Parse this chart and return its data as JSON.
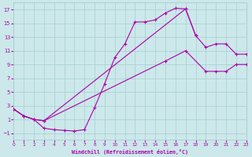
{
  "bg_color": "#cce8ea",
  "grid_color": "#a8cdd0",
  "line_color": "#aa00aa",
  "xlim": [
    0,
    23
  ],
  "ylim": [
    -2,
    18
  ],
  "xticks": [
    0,
    1,
    2,
    3,
    4,
    5,
    6,
    7,
    8,
    9,
    10,
    11,
    12,
    13,
    14,
    15,
    16,
    17,
    18,
    19,
    20,
    21,
    22,
    23
  ],
  "yticks": [
    -1,
    1,
    3,
    5,
    7,
    9,
    11,
    13,
    15,
    17
  ],
  "xlabel": "Windchill (Refroidissement éolien,°C)",
  "curve1_x": [
    0,
    1,
    2,
    3,
    4,
    5,
    6,
    7,
    8,
    9,
    10,
    11,
    12,
    13,
    14,
    15,
    16,
    17,
    18
  ],
  "curve1_y": [
    2.5,
    1.5,
    1.0,
    -0.3,
    -0.5,
    -0.6,
    -0.7,
    -0.5,
    2.7,
    6.2,
    10.0,
    12.0,
    15.2,
    15.2,
    15.5,
    16.5,
    17.2,
    17.1,
    13.2
  ],
  "curve2_x": [
    0,
    1,
    2,
    3,
    17,
    18,
    19,
    20,
    21,
    22,
    23
  ],
  "curve2_y": [
    2.5,
    1.5,
    1.0,
    0.8,
    17.1,
    13.2,
    11.5,
    12.0,
    12.0,
    10.5,
    10.5
  ],
  "curve3_x": [
    0,
    1,
    2,
    3,
    15,
    17,
    19,
    20,
    21,
    22,
    23
  ],
  "curve3_y": [
    2.5,
    1.5,
    1.0,
    0.8,
    9.5,
    11.0,
    8.0,
    8.0,
    8.0,
    9.0,
    9.0
  ]
}
